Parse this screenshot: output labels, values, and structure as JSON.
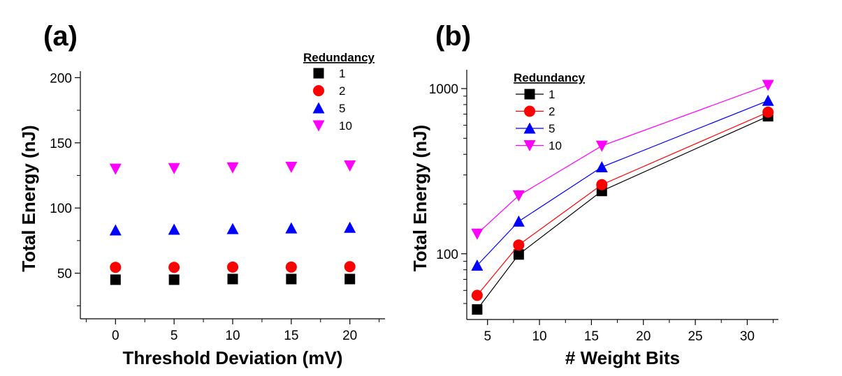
{
  "chart_data": [
    {
      "panel_label": "(a)",
      "type": "scatter",
      "xlabel": "Threshold Deviation (mV)",
      "ylabel": "Total Energy (nJ)",
      "xlim": [
        -3,
        23
      ],
      "ylim": [
        15,
        205
      ],
      "xticks": [
        "0",
        "5",
        "10",
        "15",
        "20"
      ],
      "xtick_values": [
        0,
        5,
        10,
        15,
        20
      ],
      "yticks": [
        "50",
        "100",
        "150",
        "200"
      ],
      "ytick_values": [
        50,
        100,
        150,
        200
      ],
      "legend": {
        "title": "Redundancy",
        "position": "top-right"
      },
      "x": [
        0,
        5,
        10,
        15,
        20
      ],
      "series": [
        {
          "name": "1",
          "marker": "square",
          "color": "#000000",
          "values": [
            45,
            45,
            45.5,
            45.5,
            45.5
          ]
        },
        {
          "name": "2",
          "marker": "circle",
          "color": "#ff0000",
          "values": [
            54.5,
            54.5,
            54.7,
            54.7,
            55
          ]
        },
        {
          "name": "5",
          "marker": "triangle-up",
          "color": "#0000ff",
          "values": [
            83,
            83.5,
            84,
            84.5,
            85
          ]
        },
        {
          "name": "10",
          "marker": "triangle-down",
          "color": "#ff00ff",
          "values": [
            130,
            130.5,
            131,
            131.5,
            132.5
          ]
        }
      ]
    },
    {
      "panel_label": "(b)",
      "type": "line",
      "xlabel": "# Weight Bits",
      "ylabel": "Total Energy (nJ)",
      "xlim": [
        3,
        33
      ],
      "ylim": [
        40,
        1300
      ],
      "yscale": "log",
      "xticks": [
        "5",
        "10",
        "15",
        "20",
        "25",
        "30"
      ],
      "xtick_values": [
        5,
        10,
        15,
        20,
        25,
        30
      ],
      "yticks": [
        "100",
        "1000"
      ],
      "ytick_values": [
        100,
        1000
      ],
      "legend": {
        "title": "Redundancy",
        "position": "top-left"
      },
      "x": [
        4,
        8,
        16,
        32
      ],
      "series": [
        {
          "name": "1",
          "marker": "square",
          "color": "#000000",
          "values": [
            46,
            99,
            240,
            680
          ]
        },
        {
          "name": "2",
          "marker": "circle",
          "color": "#ff0000",
          "values": [
            56,
            113,
            262,
            720
          ]
        },
        {
          "name": "5",
          "marker": "triangle-up",
          "color": "#0000ff",
          "values": [
            85,
            157,
            335,
            845
          ]
        },
        {
          "name": "10",
          "marker": "triangle-down",
          "color": "#ff00ff",
          "values": [
            132,
            225,
            450,
            1050
          ]
        }
      ]
    }
  ]
}
